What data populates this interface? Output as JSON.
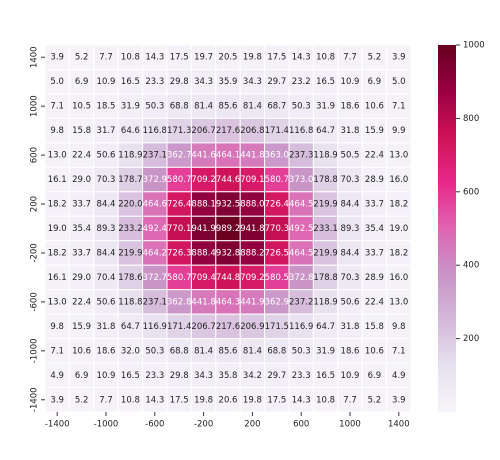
{
  "chart_data": {
    "type": "heatmap",
    "categories": [
      -1400,
      null,
      -1000,
      null,
      -600,
      null,
      -200,
      null,
      200,
      null,
      600,
      null,
      1000,
      null,
      1400
    ],
    "y_categories": [
      1400,
      null,
      1000,
      null,
      600,
      null,
      200,
      null,
      -200,
      null,
      -600,
      null,
      -1000,
      null,
      -1400
    ],
    "values": [
      [
        3.9,
        5.2,
        7.7,
        10.8,
        14.3,
        17.5,
        19.7,
        20.5,
        19.8,
        17.5,
        14.3,
        10.8,
        7.7,
        5.2,
        3.9
      ],
      [
        5.0,
        6.9,
        10.9,
        16.5,
        23.3,
        29.8,
        34.3,
        35.9,
        34.3,
        29.7,
        23.2,
        16.5,
        10.9,
        6.9,
        5.0
      ],
      [
        7.1,
        10.5,
        18.5,
        31.9,
        50.3,
        68.8,
        81.4,
        85.6,
        81.4,
        68.7,
        50.3,
        31.9,
        18.6,
        10.6,
        7.1
      ],
      [
        9.8,
        15.8,
        31.7,
        64.6,
        116.8,
        171.3,
        206.7,
        217.6,
        206.8,
        171.4,
        116.8,
        64.7,
        31.8,
        15.9,
        9.9
      ],
      [
        13.0,
        22.4,
        50.6,
        118.9,
        237.1,
        362.7,
        441.6,
        464.1,
        441.8,
        363.0,
        237.3,
        118.9,
        50.5,
        22.4,
        13.0
      ],
      [
        16.1,
        29.0,
        70.3,
        178.7,
        372.9,
        580.7,
        709.2,
        744.6,
        709.1,
        580.7,
        373.0,
        178.8,
        70.3,
        28.9,
        16.0
      ],
      [
        18.2,
        33.7,
        84.4,
        220.0,
        464.6,
        726.4,
        888.1,
        932.5,
        888.0,
        726.4,
        464.5,
        219.9,
        84.4,
        33.7,
        18.2
      ],
      [
        19.0,
        35.4,
        89.3,
        233.2,
        492.4,
        770.1,
        941.9,
        989.2,
        941.8,
        770.3,
        492.5,
        233.1,
        89.3,
        35.4,
        19.0
      ],
      [
        18.2,
        33.7,
        84.4,
        219.9,
        464.2,
        726.3,
        888.4,
        932.8,
        888.2,
        726.5,
        464.5,
        219.9,
        84.4,
        33.7,
        18.2
      ],
      [
        16.1,
        29.0,
        70.4,
        178.6,
        372.7,
        580.7,
        709.4,
        744.8,
        709.2,
        580.5,
        372.8,
        178.8,
        70.3,
        28.9,
        16.0
      ],
      [
        13.0,
        22.4,
        50.6,
        118.8,
        237.1,
        362.8,
        441.8,
        464.3,
        441.9,
        362.9,
        237.2,
        118.9,
        50.6,
        22.4,
        13.0
      ],
      [
        9.8,
        15.9,
        31.8,
        64.7,
        116.9,
        171.4,
        206.7,
        217.6,
        206.9,
        171.5,
        116.9,
        64.7,
        31.8,
        15.8,
        9.8
      ],
      [
        7.1,
        10.6,
        18.6,
        32.0,
        50.3,
        68.8,
        81.4,
        85.6,
        81.4,
        68.8,
        50.3,
        31.9,
        18.6,
        10.6,
        7.1
      ],
      [
        4.9,
        6.9,
        10.9,
        16.5,
        23.3,
        29.8,
        34.3,
        35.8,
        34.2,
        29.7,
        23.3,
        16.5,
        10.9,
        6.9,
        4.9
      ],
      [
        3.9,
        5.2,
        7.7,
        10.8,
        14.3,
        17.5,
        19.8,
        20.6,
        19.8,
        17.5,
        14.3,
        10.8,
        7.7,
        5.2,
        3.9
      ]
    ],
    "value_labels": [
      [
        "3.9",
        "5.2",
        "7.7",
        "10.8",
        "14.3",
        "17.5",
        "19.7",
        "20.5",
        "19.8",
        "17.5",
        "14.3",
        "10.8",
        "7.7",
        "5.2",
        "3.9"
      ],
      [
        "5.0",
        "6.9",
        "10.9",
        "16.5",
        "23.3",
        "29.8",
        "34.3",
        "35.9",
        "34.3",
        "29.7",
        "23.2",
        "16.5",
        "10.9",
        "6.9",
        "5.0"
      ],
      [
        "7.1",
        "10.5",
        "18.5",
        "31.9",
        "50.3",
        "68.8",
        "81.4",
        "85.6",
        "81.4",
        "68.7",
        "50.3",
        "31.9",
        "18.6",
        "10.6",
        "7.1"
      ],
      [
        "9.8",
        "15.8",
        "31.7",
        "64.6",
        "116.8",
        "171.3",
        "206.7",
        "217.6",
        "206.8",
        "171.4",
        "116.8",
        "64.7",
        "31.8",
        "15.9",
        "9.9"
      ],
      [
        "13.0",
        "22.4",
        "50.6",
        "118.9",
        "237.1",
        "362.7",
        "441.6",
        "464.1",
        "441.8",
        "363.0",
        "237.3",
        "118.9",
        "50.5",
        "22.4",
        "13.0"
      ],
      [
        "16.1",
        "29.0",
        "70.3",
        "178.7",
        "372.9",
        "580.7",
        "709.2",
        "744.6",
        "709.1",
        "580.7",
        "373.0",
        "178.8",
        "70.3",
        "28.9",
        "16.0"
      ],
      [
        "18.2",
        "33.7",
        "84.4",
        "220.0",
        "464.6",
        "726.4",
        "888.1",
        "932.5",
        "888.0",
        "726.4",
        "464.5",
        "219.9",
        "84.4",
        "33.7",
        "18.2"
      ],
      [
        "19.0",
        "35.4",
        "89.3",
        "233.2",
        "492.4",
        "770.1",
        "941.9",
        "989.2",
        "941.8",
        "770.3",
        "492.5",
        "233.1",
        "89.3",
        "35.4",
        "19.0"
      ],
      [
        "18.2",
        "33.7",
        "84.4",
        "219.9",
        "464.2",
        "726.3",
        "888.4",
        "932.8",
        "888.2",
        "726.5",
        "464.5",
        "219.9",
        "84.4",
        "33.7",
        "18.2"
      ],
      [
        "16.1",
        "29.0",
        "70.4",
        "178.6",
        "372.7",
        "580.7",
        "709.4",
        "744.8",
        "709.2",
        "580.5",
        "372.8",
        "178.8",
        "70.3",
        "28.9",
        "16.0"
      ],
      [
        "13.0",
        "22.4",
        "50.6",
        "118.8",
        "237.1",
        "362.8",
        "441.8",
        "464.3",
        "441.9",
        "362.9",
        "237.2",
        "118.9",
        "50.6",
        "22.4",
        "13.0"
      ],
      [
        "9.8",
        "15.9",
        "31.8",
        "64.7",
        "116.9",
        "171.4",
        "206.7",
        "217.6",
        "206.9",
        "171.5",
        "116.9",
        "64.7",
        "31.8",
        "15.8",
        "9.8"
      ],
      [
        "7.1",
        "10.6",
        "18.6",
        "32.0",
        "50.3",
        "68.8",
        "81.4",
        "85.6",
        "81.4",
        "68.8",
        "50.3",
        "31.9",
        "18.6",
        "10.6",
        "7.1"
      ],
      [
        "4.9",
        "6.9",
        "10.9",
        "16.5",
        "23.3",
        "29.8",
        "34.3",
        "35.8",
        "34.2",
        "29.7",
        "23.3",
        "16.5",
        "10.9",
        "6.9",
        "4.9"
      ],
      [
        "3.9",
        "5.2",
        "7.7",
        "10.8",
        "14.3",
        "17.5",
        "19.8",
        "20.6",
        "19.8",
        "17.5",
        "14.3",
        "10.8",
        "7.7",
        "5.2",
        "3.9"
      ]
    ],
    "clim": [
      0,
      1000
    ],
    "cticks": [
      200,
      400,
      600,
      800,
      1000
    ],
    "colors": [
      "#f7f4f9",
      "#e7e1ef",
      "#d4b9da",
      "#c994c7",
      "#df65b0",
      "#e7298a",
      "#ce1256",
      "#980043",
      "#67001f"
    ]
  }
}
